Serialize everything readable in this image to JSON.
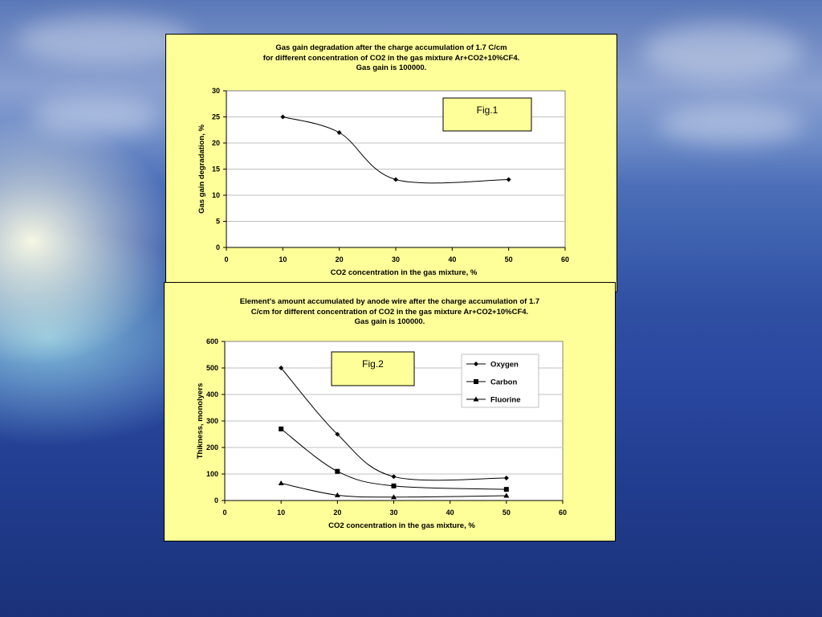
{
  "chart_data": [
    {
      "type": "line",
      "title": [
        "Gas gain degradation after the charge accumulation of 1.7 C/cm",
        "for different concentration of CO2 in the gas mixture Ar+CO2+10%CF4.",
        "Gas gain is 100000."
      ],
      "xlabel": "CO2 concentration in the gas mixture, %",
      "ylabel": "Gas gain degradation, %",
      "xlim": [
        0,
        60
      ],
      "ylim": [
        0,
        30
      ],
      "xticks": [
        0,
        10,
        20,
        30,
        40,
        50,
        60
      ],
      "yticks": [
        0,
        5,
        10,
        15,
        20,
        25,
        30
      ],
      "grid": "horizontal",
      "annotation": "Fig.1",
      "series": [
        {
          "marker": "diamond",
          "x": [
            10,
            20,
            30,
            50
          ],
          "y": [
            25,
            22,
            13,
            13
          ]
        }
      ]
    },
    {
      "type": "line",
      "title": [
        "Element's amount accumulated by anode wire after the charge accumulation of 1.7",
        "C/cm for different concentration of CO2 in the gas mixture Ar+CO2+10%CF4.",
        "Gas gain is 100000."
      ],
      "xlabel": "CO2 concentration in the gas mixture, %",
      "ylabel": "Thikness, monolyers",
      "xlim": [
        0,
        60
      ],
      "ylim": [
        0,
        600
      ],
      "xticks": [
        0,
        10,
        20,
        30,
        40,
        50,
        60
      ],
      "yticks": [
        0,
        100,
        200,
        300,
        400,
        500,
        600
      ],
      "grid": "horizontal",
      "annotation": "Fig.2",
      "legend_position": "top-right",
      "series": [
        {
          "name": "Oxygen",
          "marker": "diamond",
          "x": [
            10,
            20,
            30,
            50
          ],
          "y": [
            500,
            250,
            90,
            85
          ]
        },
        {
          "name": "Carbon",
          "marker": "square",
          "x": [
            10,
            20,
            30,
            50
          ],
          "y": [
            270,
            110,
            55,
            42
          ]
        },
        {
          "name": "Fluorine",
          "marker": "triangle",
          "x": [
            10,
            20,
            30,
            50
          ],
          "y": [
            65,
            20,
            13,
            18
          ]
        }
      ]
    }
  ]
}
